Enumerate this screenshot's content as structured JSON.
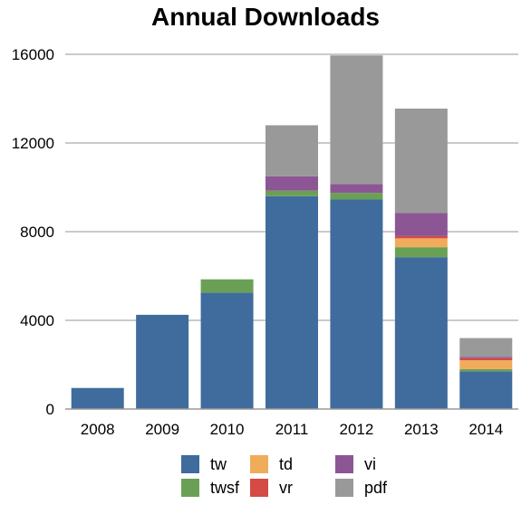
{
  "chart_data": {
    "type": "bar",
    "stacked": true,
    "title": "Annual Downloads",
    "xlabel": "",
    "ylabel": "",
    "ylim": [
      0,
      16000
    ],
    "yticks": [
      "0",
      "4000",
      "8000",
      "12000",
      "16000"
    ],
    "grid": true,
    "legend_position": "bottom",
    "categories": [
      "2008",
      "2009",
      "2010",
      "2011",
      "2012",
      "2013",
      "2014"
    ],
    "series": [
      {
        "name": "tw",
        "color": "#3f6c9c",
        "values": [
          950,
          4250,
          5250,
          9600,
          9450,
          6850,
          1700
        ]
      },
      {
        "name": "twsf",
        "color": "#6aa056",
        "values": [
          0,
          0,
          600,
          250,
          300,
          450,
          100
        ]
      },
      {
        "name": "td",
        "color": "#f0ac5a",
        "values": [
          0,
          0,
          0,
          0,
          0,
          400,
          400
        ]
      },
      {
        "name": "vr",
        "color": "#d44a45",
        "values": [
          0,
          0,
          0,
          0,
          0,
          100,
          100
        ]
      },
      {
        "name": "vi",
        "color": "#8c5694",
        "values": [
          0,
          0,
          0,
          650,
          400,
          1050,
          50
        ]
      },
      {
        "name": "pdf",
        "color": "#999999",
        "values": [
          0,
          0,
          0,
          2300,
          5800,
          4700,
          850
        ]
      }
    ],
    "legend_order": [
      "tw",
      "twsf",
      "td",
      "vr",
      "vi",
      "pdf"
    ]
  }
}
